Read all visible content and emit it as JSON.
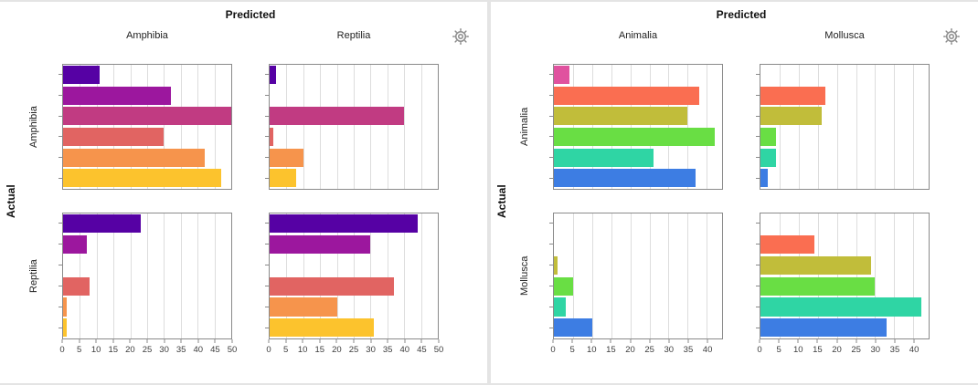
{
  "icons": {
    "settings": "gear-icon"
  },
  "chart_data": [
    {
      "type": "bar",
      "orientation": "horizontal",
      "layout": "confusion-matrix-facets",
      "predicted_label": "Predicted",
      "actual_label": "Actual",
      "col_labels": [
        "Amphibia",
        "Reptilia"
      ],
      "row_labels": [
        "Amphibia",
        "Reptilia"
      ],
      "x_ticks": [
        0,
        5,
        10,
        15,
        20,
        25,
        30,
        35,
        40,
        45,
        50
      ],
      "x_max": 50,
      "grid": true,
      "colors": [
        "#5601A4",
        "#9C179E",
        "#C13B82",
        "#E16462",
        "#F6944C",
        "#FCC32D"
      ],
      "cells": [
        {
          "actual": "Amphibia",
          "predicted": "Amphibia",
          "values": [
            11,
            32,
            50,
            30,
            42,
            47
          ]
        },
        {
          "actual": "Amphibia",
          "predicted": "Reptilia",
          "values": [
            2,
            0,
            40,
            1,
            10,
            8
          ]
        },
        {
          "actual": "Reptilia",
          "predicted": "Amphibia",
          "values": [
            23,
            7,
            0,
            8,
            1,
            1
          ]
        },
        {
          "actual": "Reptilia",
          "predicted": "Reptilia",
          "values": [
            44,
            30,
            0,
            37,
            20,
            31
          ]
        }
      ]
    },
    {
      "type": "bar",
      "orientation": "horizontal",
      "layout": "confusion-matrix-facets",
      "predicted_label": "Predicted",
      "actual_label": "Actual",
      "col_labels": [
        "Animalia",
        "Mollusca"
      ],
      "row_labels": [
        "Animalia",
        "Mollusca"
      ],
      "x_ticks": [
        0,
        5,
        10,
        15,
        20,
        25,
        30,
        35,
        40
      ],
      "x_max": 44,
      "grid": true,
      "colors": [
        "#E0529F",
        "#FA6E51",
        "#C1BD3A",
        "#69DE44",
        "#2FD5A4",
        "#3D7DE3"
      ],
      "cells": [
        {
          "actual": "Animalia",
          "predicted": "Animalia",
          "values": [
            4,
            38,
            35,
            42,
            26,
            37
          ]
        },
        {
          "actual": "Animalia",
          "predicted": "Mollusca",
          "values": [
            0,
            17,
            16,
            4,
            4,
            2
          ]
        },
        {
          "actual": "Mollusca",
          "predicted": "Animalia",
          "values": [
            0,
            0,
            1,
            5,
            3,
            10
          ]
        },
        {
          "actual": "Mollusca",
          "predicted": "Mollusca",
          "values": [
            0,
            14,
            29,
            30,
            42,
            33
          ]
        }
      ]
    }
  ]
}
